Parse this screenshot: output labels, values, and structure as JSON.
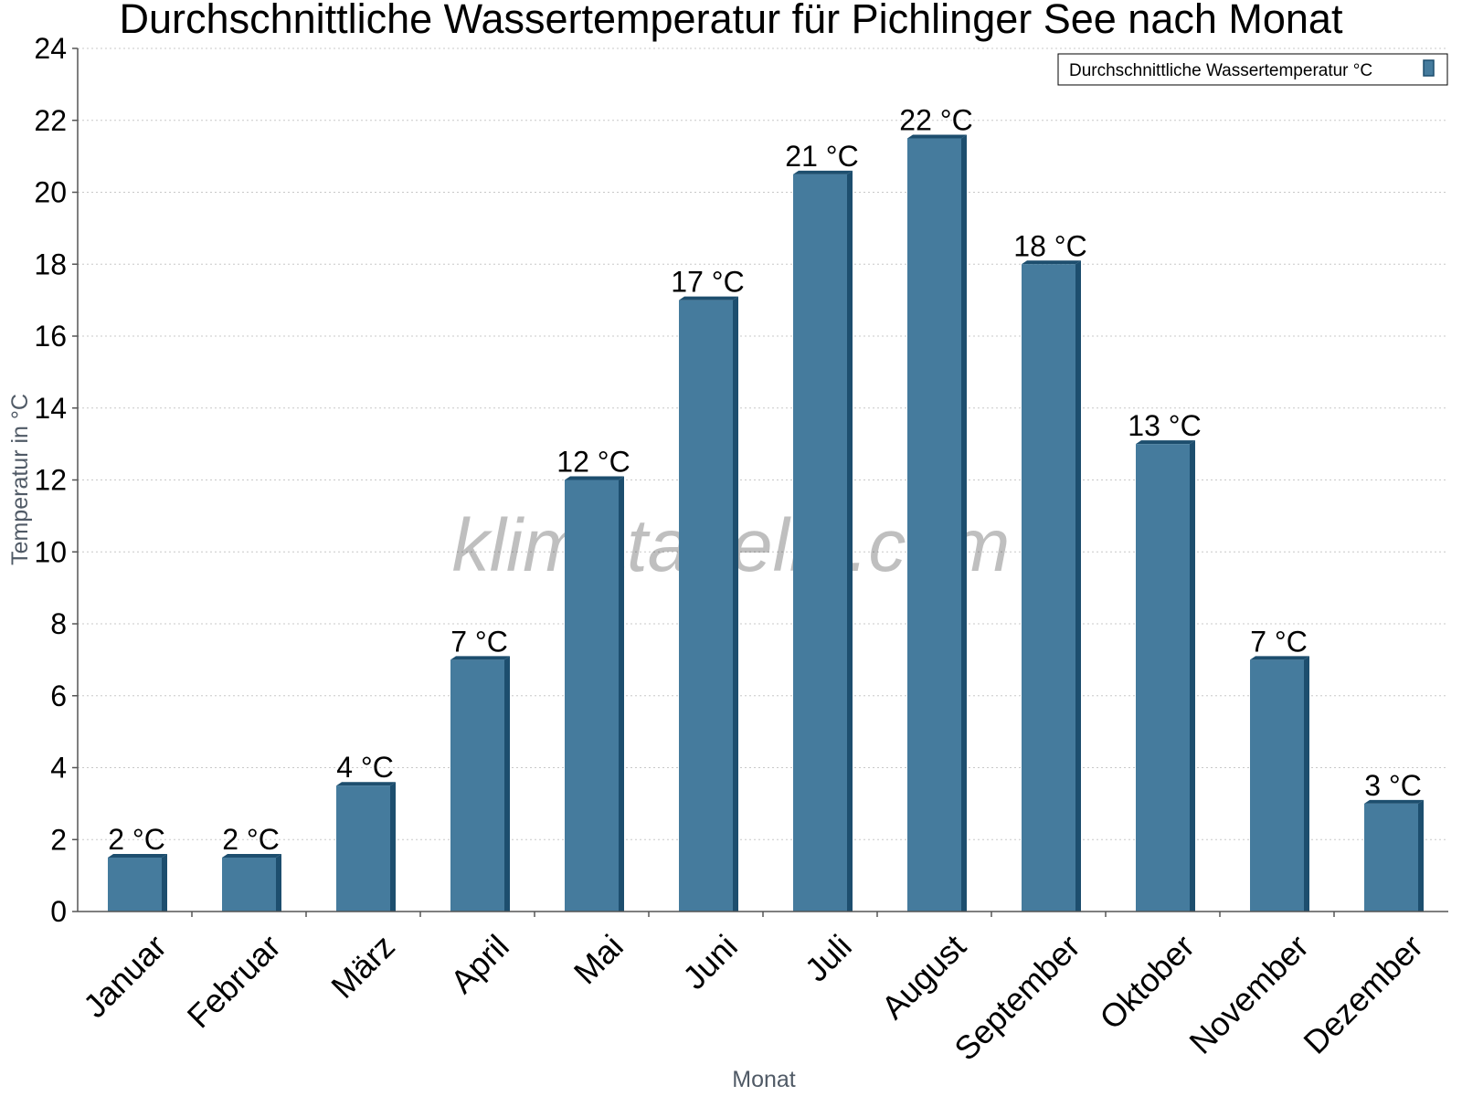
{
  "chart_data": {
    "type": "bar",
    "title": "Durchschnittliche Wassertemperatur für Pichlinger See nach Monat",
    "xlabel": "Monat",
    "ylabel": "Temperatur in °C",
    "ylim": [
      0,
      24
    ],
    "yticks": [
      0,
      2,
      4,
      6,
      8,
      10,
      12,
      14,
      16,
      18,
      20,
      22,
      24
    ],
    "grid": true,
    "legend_position": "top-right",
    "categories": [
      "Januar",
      "Februar",
      "März",
      "April",
      "Mai",
      "Juni",
      "Juli",
      "August",
      "September",
      "Oktober",
      "November",
      "Dezember"
    ],
    "series": [
      {
        "name": "Durchschnittliche Wassertemperatur °C",
        "color": "#457b9d",
        "side_color": "#1d4e6e",
        "values": [
          1.5,
          1.5,
          3.5,
          7,
          12,
          17,
          20.5,
          21.5,
          18,
          13,
          7,
          3
        ],
        "labels": [
          "2 °C",
          "2 °C",
          "4 °C",
          "7 °C",
          "12 °C",
          "17 °C",
          "21 °C",
          "22 °C",
          "18 °C",
          "13 °C",
          "7 °C",
          "3 °C"
        ]
      }
    ],
    "watermark": "klimatabelle.com"
  }
}
